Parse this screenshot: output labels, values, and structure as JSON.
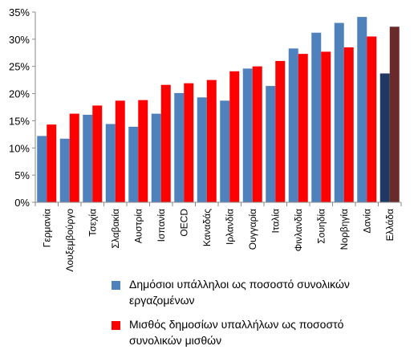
{
  "chart_data": {
    "type": "bar",
    "categories": [
      "Γερμανία",
      "Λουξεμβούργο",
      "Τσεχία",
      "Σλαβακία",
      "Αυστρία",
      "Ισπανία",
      "OECD",
      "Καναδάς",
      "Ιρλανδία",
      "Ουγγαρία",
      "Ιταλία",
      "Φινλανδία",
      "Σουηδία",
      "Νορβηγία",
      "Δανία",
      "Ελλάδα"
    ],
    "series": [
      {
        "name": "Δημόσιοι υπάλληλοι ως ποσοστό συνολικών εργαζομένων",
        "color": "#4f81bd",
        "values": [
          12.2,
          11.7,
          16.1,
          14.4,
          13.9,
          16.3,
          20.1,
          19.3,
          18.7,
          24.6,
          21.4,
          28.3,
          31.2,
          33.0,
          34.1,
          23.7
        ]
      },
      {
        "name": "Μισθός δημοσίων υπαλλήλων ως ποσοστό συνολικών μισθών",
        "color": "#ff0000",
        "values": [
          14.3,
          16.3,
          17.8,
          18.7,
          18.8,
          21.6,
          21.9,
          22.5,
          24.1,
          25.0,
          26.0,
          27.3,
          27.7,
          28.5,
          30.5,
          32.3
        ]
      }
    ],
    "highlight": {
      "category": "Ελλάδα",
      "colors": [
        "#1f3864",
        "#6b2a2a"
      ]
    },
    "y_ticks": [
      "0%",
      "5%",
      "10%",
      "15%",
      "20%",
      "25%",
      "30%",
      "35%"
    ],
    "ylim": [
      0,
      35
    ],
    "title": "",
    "xlabel": "",
    "ylabel": "",
    "legend_position": "bottom",
    "grid": false
  }
}
